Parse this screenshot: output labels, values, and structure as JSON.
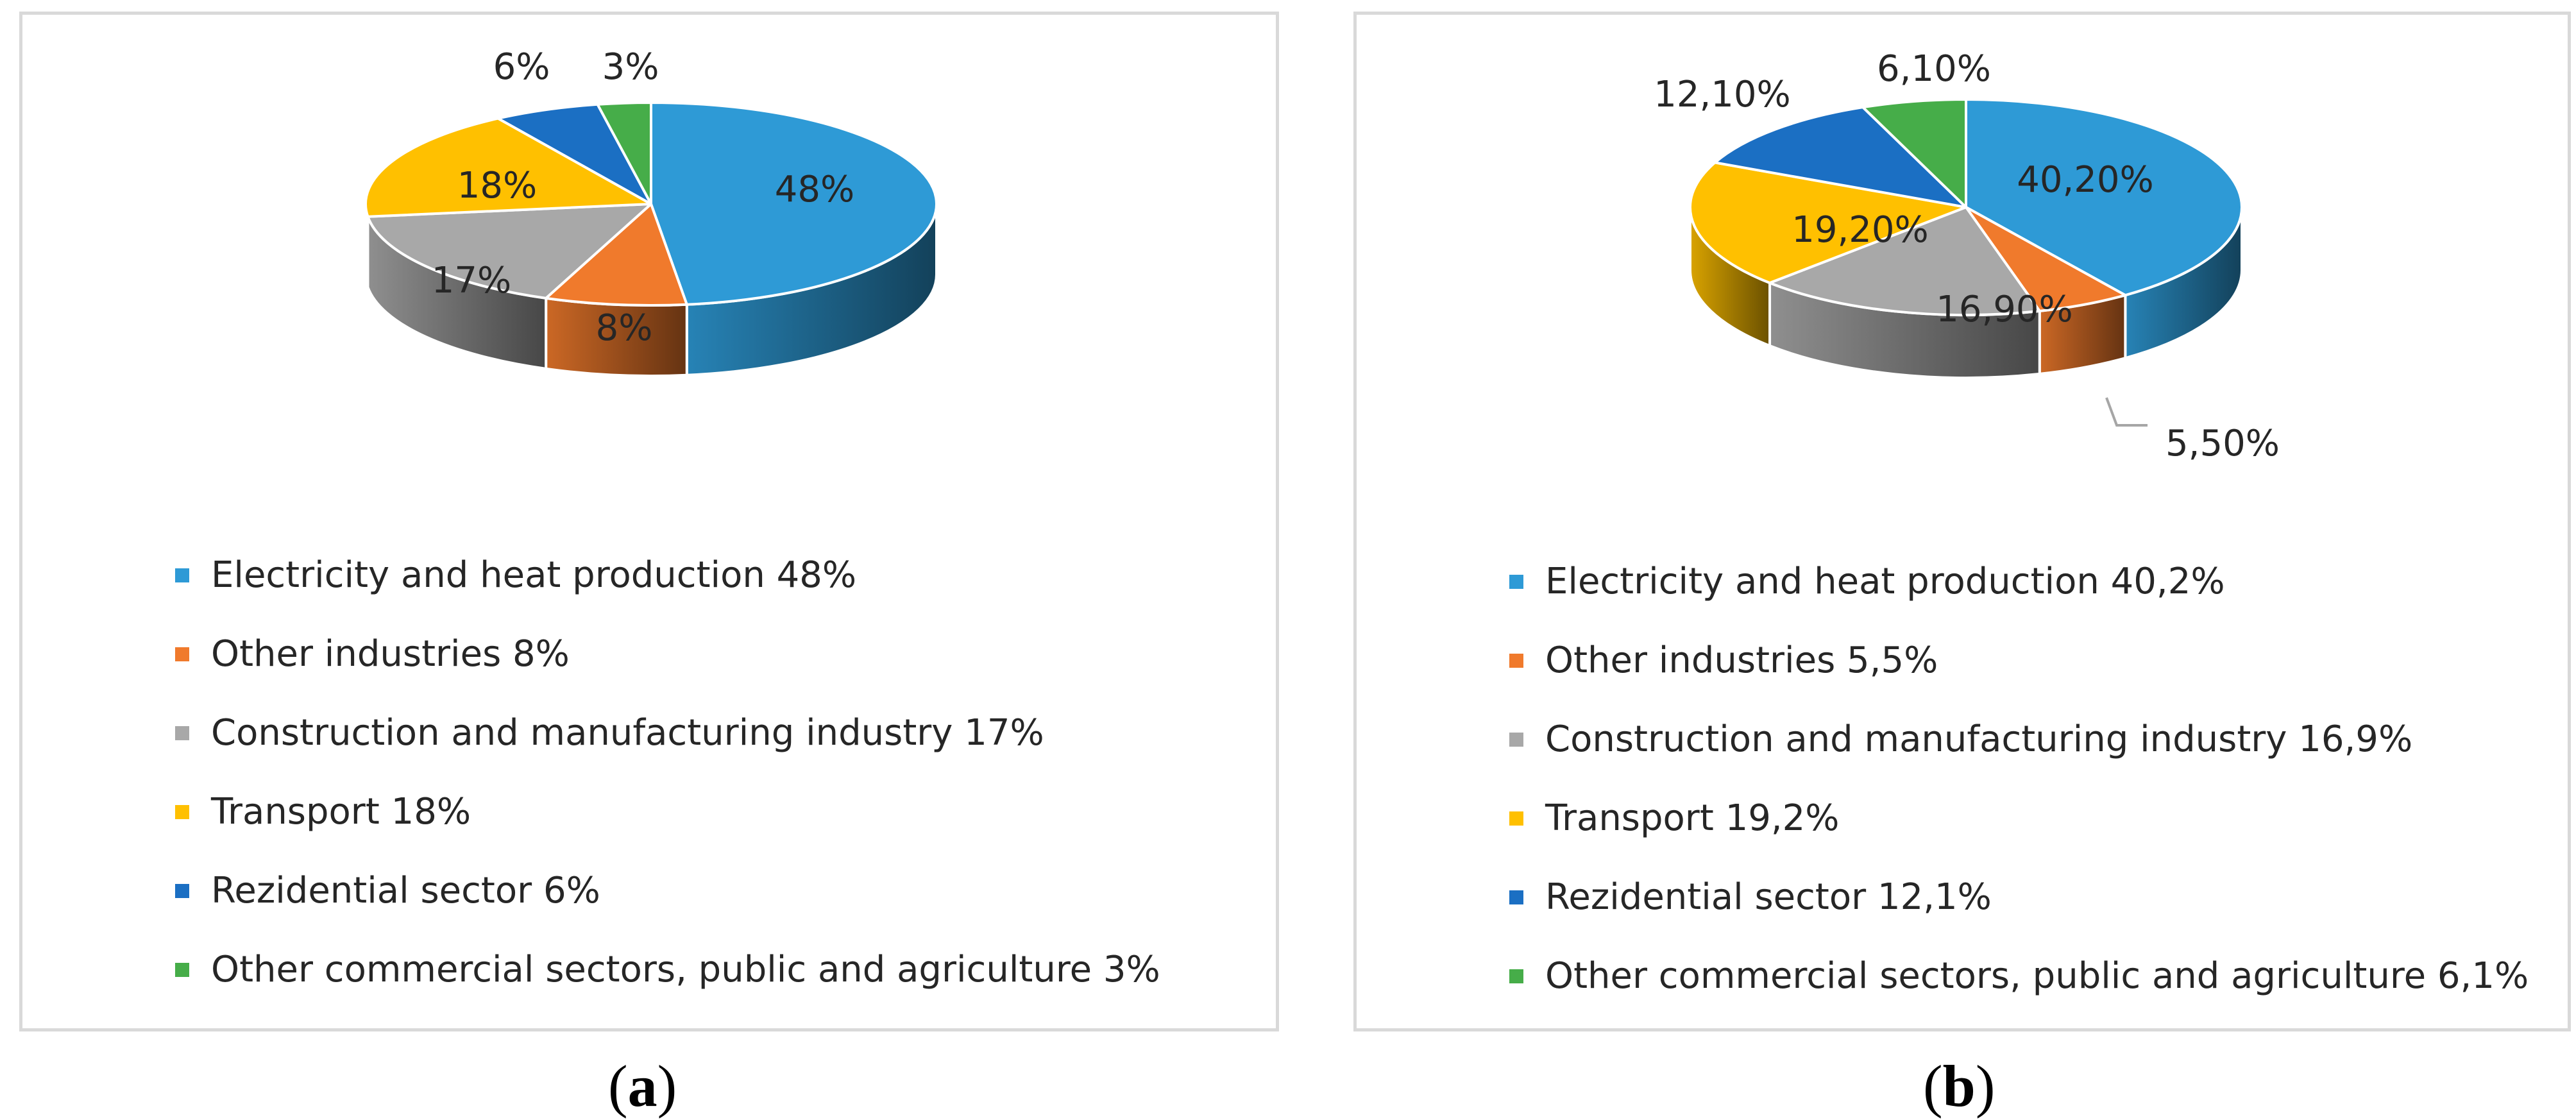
{
  "chart_data": [
    {
      "type": "pie",
      "style": "3d",
      "panel": "a",
      "caption": "a",
      "categories": [
        "Electricity and heat production",
        "Other industries",
        "Construction and manufacturing industry",
        "Transport",
        "Rezidential sector",
        "Other commercial sectors, public and agriculture"
      ],
      "values": [
        48,
        8,
        17,
        18,
        6,
        3
      ],
      "slice_labels": [
        "48%",
        "8%",
        "17%",
        "18%",
        "6%",
        "3%"
      ],
      "legend": [
        "Electricity and heat production 48%",
        "Other industries 8%",
        "Construction and manufacturing industry 17%",
        "Transport 18%",
        "Rezidential sector 6%",
        "Other commercial sectors, public and agriculture 3%"
      ],
      "legend_position": "bottom"
    },
    {
      "type": "pie",
      "style": "3d",
      "panel": "b",
      "caption": "b",
      "categories": [
        "Electricity and heat production",
        "Other industries",
        "Construction and manufacturing industry",
        "Transport",
        "Rezidential sector",
        "Other commercial sectors, public and agriculture"
      ],
      "values": [
        40.2,
        5.5,
        16.9,
        19.2,
        12.1,
        6.1
      ],
      "slice_labels": [
        "40,20%",
        "5,50%",
        "16,90%",
        "19,20%",
        "12,10%",
        "6,10%"
      ],
      "legend": [
        "Electricity and heat production 40,2%",
        "Other industries 5,5%",
        "Construction and manufacturing industry 16,9%",
        "Transport 19,2%",
        "Rezidential sector 12,1%",
        "Other commercial sectors, public and agriculture 6,1%"
      ],
      "legend_position": "bottom"
    }
  ],
  "colors": [
    "#2e9ad6",
    "#f07a2c",
    "#a8a8a8",
    "#ffc000",
    "#1b6fc3",
    "#46ad49"
  ]
}
